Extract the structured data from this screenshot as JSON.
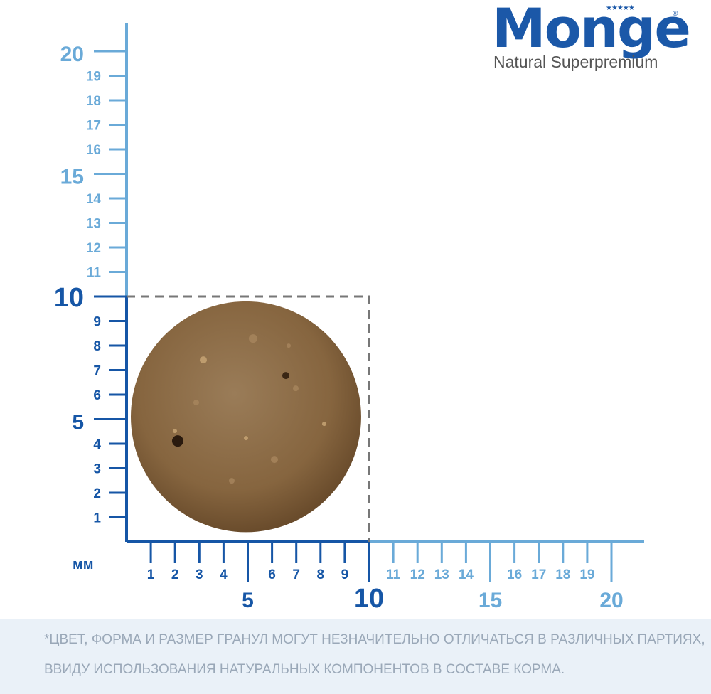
{
  "brand": {
    "name": "Monge",
    "tagline": "Natural Superpremium",
    "stars": "★★★★★",
    "registered": "®"
  },
  "ruler": {
    "unit_label": "мм",
    "y_labels": [
      "1",
      "2",
      "3",
      "4",
      "5",
      "6",
      "7",
      "8",
      "9",
      "10",
      "11",
      "12",
      "13",
      "14",
      "15",
      "16",
      "17",
      "18",
      "19",
      "20"
    ],
    "x_labels": [
      "1",
      "2",
      "3",
      "4",
      "5",
      "6",
      "7",
      "8",
      "9",
      "10",
      "11",
      "12",
      "13",
      "14",
      "15",
      "16",
      "17",
      "18",
      "19",
      "20"
    ],
    "measured_size_mm": 10,
    "colors": {
      "dark": "#1656a6",
      "light": "#6aaad8"
    }
  },
  "kibble": {
    "diameter_mm": 9.5,
    "color": "#8a6a44"
  },
  "disclaimer": {
    "line1": "*ЦВЕТ, ФОРМА И РАЗМЕР ГРАНУЛ МОГУТ НЕЗНАЧИТЕЛЬНО ОТЛИЧАТЬСЯ В РАЗЛИЧНЫХ ПАРТИЯХ,",
    "line2": "ВВИДУ ИСПОЛЬЗОВАНИЯ НАТУРАЛЬНЫХ КОМПОНЕНТОВ В СОСТАВЕ КОРМА."
  }
}
